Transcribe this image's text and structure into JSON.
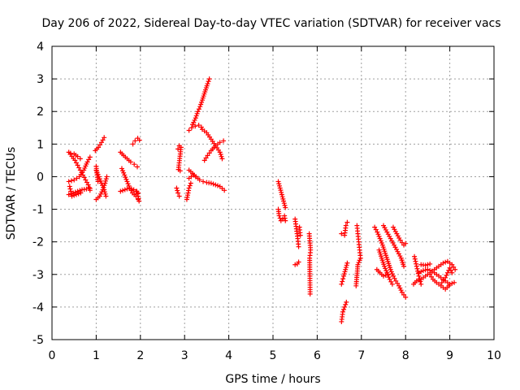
{
  "chart_data": {
    "type": "scatter",
    "title": "Day 206 of 2022, Sidereal Day-to-day VTEC variation (SDTVAR) for receiver vacs",
    "xlabel": "GPS time / hours",
    "ylabel": "SDTVAR / TECUs",
    "xlim": [
      0,
      10
    ],
    "ylim": [
      -5,
      4
    ],
    "xticks": [
      "0",
      "1",
      "2",
      "3",
      "4",
      "5",
      "6",
      "7",
      "8",
      "9",
      "10"
    ],
    "yticks": [
      "-5",
      "-4",
      "-3",
      "-2",
      "-1",
      "0",
      "1",
      "2",
      "3",
      "4"
    ],
    "grid": true,
    "marker": "+",
    "color": "#ff0000",
    "tracks": [
      [
        [
          0.38,
          0.75
        ],
        [
          0.45,
          0.62
        ],
        [
          0.52,
          0.5
        ],
        [
          0.58,
          0.35
        ],
        [
          0.64,
          0.2
        ],
        [
          0.7,
          0.05
        ],
        [
          0.76,
          -0.1
        ],
        [
          0.82,
          -0.25
        ],
        [
          0.86,
          -0.42
        ]
      ],
      [
        [
          0.38,
          -0.55
        ],
        [
          0.48,
          -0.5
        ],
        [
          0.58,
          -0.45
        ],
        [
          0.68,
          -0.4
        ],
        [
          0.78,
          -0.38
        ],
        [
          0.86,
          -0.36
        ]
      ],
      [
        [
          0.38,
          -0.15
        ],
        [
          0.5,
          -0.1
        ],
        [
          0.62,
          0.0
        ],
        [
          0.72,
          0.2
        ],
        [
          0.8,
          0.45
        ],
        [
          0.86,
          0.6
        ]
      ],
      [
        [
          0.42,
          0.72
        ],
        [
          0.5,
          0.7
        ],
        [
          0.58,
          0.62
        ],
        [
          0.64,
          0.55
        ]
      ],
      [
        [
          0.4,
          -0.3
        ],
        [
          0.45,
          -0.6
        ],
        [
          0.55,
          -0.55
        ],
        [
          0.65,
          -0.5
        ]
      ],
      [
        [
          0.98,
          0.8
        ],
        [
          1.05,
          0.9
        ],
        [
          1.12,
          1.05
        ],
        [
          1.18,
          1.2
        ]
      ],
      [
        [
          1.0,
          0.2
        ],
        [
          1.06,
          0.0
        ],
        [
          1.12,
          -0.2
        ],
        [
          1.18,
          -0.4
        ],
        [
          1.22,
          -0.6
        ]
      ],
      [
        [
          1.0,
          -0.7
        ],
        [
          1.08,
          -0.6
        ],
        [
          1.15,
          -0.4
        ],
        [
          1.2,
          -0.2
        ],
        [
          1.24,
          0.0
        ]
      ],
      [
        [
          1.0,
          0.32
        ],
        [
          1.02,
          0.05
        ],
        [
          1.04,
          -0.15
        ]
      ],
      [
        [
          1.55,
          0.75
        ],
        [
          1.62,
          0.65
        ],
        [
          1.7,
          0.55
        ],
        [
          1.78,
          0.45
        ],
        [
          1.86,
          0.38
        ],
        [
          1.93,
          0.3
        ]
      ],
      [
        [
          1.58,
          0.25
        ],
        [
          1.64,
          0.05
        ],
        [
          1.7,
          -0.15
        ],
        [
          1.76,
          -0.35
        ],
        [
          1.82,
          -0.5
        ],
        [
          1.9,
          -0.6
        ]
      ],
      [
        [
          1.55,
          -0.45
        ],
        [
          1.65,
          -0.4
        ],
        [
          1.75,
          -0.35
        ],
        [
          1.85,
          -0.4
        ],
        [
          1.95,
          -0.5
        ]
      ],
      [
        [
          1.83,
          1.0
        ],
        [
          1.88,
          1.1
        ],
        [
          1.94,
          1.18
        ],
        [
          1.98,
          1.12
        ]
      ],
      [
        [
          1.95,
          -0.7
        ],
        [
          1.97,
          -0.75
        ],
        [
          1.92,
          -0.45
        ]
      ],
      [
        [
          2.85,
          0.85
        ],
        [
          2.88,
          0.95
        ],
        [
          2.92,
          0.9
        ],
        [
          2.86,
          0.22
        ],
        [
          2.9,
          0.18
        ]
      ],
      [
        [
          2.82,
          -0.35
        ],
        [
          2.85,
          -0.5
        ],
        [
          2.88,
          -0.6
        ]
      ],
      [
        [
          3.05,
          -0.7
        ],
        [
          3.08,
          -0.5
        ],
        [
          3.1,
          -0.35
        ],
        [
          3.14,
          -0.2
        ]
      ],
      [
        [
          3.1,
          1.42
        ],
        [
          3.16,
          1.5
        ],
        [
          3.24,
          1.55
        ],
        [
          3.32,
          1.58
        ],
        [
          3.38,
          1.52
        ]
      ],
      [
        [
          3.18,
          1.6
        ],
        [
          3.25,
          1.8
        ],
        [
          3.3,
          2.0
        ],
        [
          3.35,
          2.15
        ],
        [
          3.4,
          2.35
        ],
        [
          3.46,
          2.6
        ],
        [
          3.52,
          2.85
        ],
        [
          3.56,
          3.0
        ]
      ],
      [
        [
          3.4,
          1.45
        ],
        [
          3.5,
          1.35
        ],
        [
          3.6,
          1.15
        ],
        [
          3.7,
          0.95
        ],
        [
          3.8,
          0.75
        ],
        [
          3.85,
          0.55
        ]
      ],
      [
        [
          3.45,
          0.5
        ],
        [
          3.52,
          0.65
        ],
        [
          3.6,
          0.8
        ],
        [
          3.7,
          0.95
        ],
        [
          3.8,
          1.05
        ],
        [
          3.88,
          1.1
        ]
      ],
      [
        [
          3.1,
          0.2
        ],
        [
          3.18,
          0.1
        ],
        [
          3.26,
          0.0
        ],
        [
          3.34,
          -0.1
        ],
        [
          3.42,
          -0.15
        ],
        [
          3.5,
          -0.18
        ],
        [
          3.6,
          -0.2
        ],
        [
          3.7,
          -0.25
        ],
        [
          3.8,
          -0.3
        ],
        [
          3.9,
          -0.42
        ]
      ],
      [
        [
          3.1,
          -0.05
        ],
        [
          3.2,
          0.05
        ],
        [
          3.3,
          -0.05
        ]
      ],
      [
        [
          5.12,
          -0.15
        ],
        [
          5.16,
          -0.35
        ],
        [
          5.2,
          -0.55
        ],
        [
          5.24,
          -0.75
        ],
        [
          5.28,
          -0.95
        ]
      ],
      [
        [
          5.12,
          -1.0
        ],
        [
          5.14,
          -1.2
        ],
        [
          5.18,
          -1.35
        ],
        [
          5.22,
          -1.3
        ],
        [
          5.26,
          -1.2
        ],
        [
          5.28,
          -1.35
        ]
      ],
      [
        [
          5.5,
          -1.3
        ],
        [
          5.53,
          -1.6
        ],
        [
          5.56,
          -1.9
        ],
        [
          5.58,
          -2.15
        ]
      ],
      [
        [
          5.5,
          -2.7
        ],
        [
          5.55,
          -2.68
        ],
        [
          5.58,
          -2.62
        ]
      ],
      [
        [
          5.6,
          -1.55
        ],
        [
          5.62,
          -1.8
        ]
      ],
      [
        [
          5.82,
          -1.75
        ],
        [
          5.85,
          -2.25
        ],
        [
          5.83,
          -2.5
        ],
        [
          5.84,
          -3.6
        ]
      ],
      [
        [
          6.55,
          -4.45
        ],
        [
          6.58,
          -4.15
        ],
        [
          6.62,
          -4.0
        ],
        [
          6.66,
          -3.85
        ]
      ],
      [
        [
          6.55,
          -3.3
        ],
        [
          6.6,
          -3.05
        ],
        [
          6.64,
          -2.85
        ],
        [
          6.68,
          -2.65
        ]
      ],
      [
        [
          6.55,
          -1.75
        ],
        [
          6.62,
          -1.8
        ],
        [
          6.65,
          -1.5
        ],
        [
          6.68,
          -1.4
        ]
      ],
      [
        [
          6.9,
          -1.5
        ],
        [
          6.92,
          -1.75
        ],
        [
          6.94,
          -2.0
        ],
        [
          6.96,
          -2.25
        ],
        [
          6.98,
          -2.5
        ],
        [
          6.92,
          -2.7
        ],
        [
          6.88,
          -3.35
        ]
      ],
      [
        [
          7.3,
          -1.55
        ],
        [
          7.36,
          -1.7
        ],
        [
          7.42,
          -1.9
        ],
        [
          7.48,
          -2.1
        ],
        [
          7.54,
          -2.35
        ],
        [
          7.6,
          -2.6
        ],
        [
          7.66,
          -2.85
        ],
        [
          7.72,
          -3.05
        ],
        [
          7.78,
          -3.2
        ],
        [
          7.85,
          -3.35
        ],
        [
          7.92,
          -3.55
        ],
        [
          8.0,
          -3.7
        ]
      ],
      [
        [
          7.4,
          -2.25
        ],
        [
          7.46,
          -2.5
        ],
        [
          7.52,
          -2.75
        ],
        [
          7.58,
          -2.95
        ],
        [
          7.64,
          -3.15
        ],
        [
          7.7,
          -3.3
        ]
      ],
      [
        [
          7.5,
          -1.5
        ],
        [
          7.58,
          -1.7
        ],
        [
          7.66,
          -1.9
        ],
        [
          7.74,
          -2.1
        ],
        [
          7.82,
          -2.3
        ],
        [
          7.9,
          -2.5
        ],
        [
          7.96,
          -2.75
        ]
      ],
      [
        [
          7.72,
          -1.55
        ],
        [
          7.8,
          -1.75
        ],
        [
          7.88,
          -1.95
        ],
        [
          7.96,
          -2.1
        ],
        [
          8.0,
          -2.05
        ]
      ],
      [
        [
          7.35,
          -2.85
        ],
        [
          7.42,
          -2.95
        ],
        [
          7.5,
          -3.05
        ],
        [
          7.6,
          -3.0
        ]
      ],
      [
        [
          8.2,
          -2.45
        ],
        [
          8.25,
          -2.75
        ],
        [
          8.3,
          -3.05
        ],
        [
          8.35,
          -3.3
        ]
      ],
      [
        [
          8.18,
          -3.3
        ],
        [
          8.25,
          -3.2
        ],
        [
          8.35,
          -3.15
        ],
        [
          8.45,
          -3.05
        ],
        [
          8.55,
          -2.95
        ],
        [
          8.65,
          -2.85
        ],
        [
          8.75,
          -2.75
        ],
        [
          8.85,
          -2.65
        ],
        [
          8.95,
          -2.6
        ],
        [
          9.05,
          -2.7
        ],
        [
          9.12,
          -2.85
        ]
      ],
      [
        [
          8.3,
          -2.95
        ],
        [
          8.4,
          -2.88
        ],
        [
          8.5,
          -2.85
        ],
        [
          8.6,
          -2.9
        ],
        [
          8.7,
          -3.0
        ],
        [
          8.8,
          -3.1
        ],
        [
          8.9,
          -3.2
        ],
        [
          9.0,
          -3.3
        ],
        [
          9.1,
          -3.25
        ]
      ],
      [
        [
          8.55,
          -3.0
        ],
        [
          8.62,
          -3.15
        ],
        [
          8.7,
          -3.25
        ],
        [
          8.8,
          -3.35
        ],
        [
          8.9,
          -3.45
        ],
        [
          8.98,
          -3.35
        ]
      ],
      [
        [
          8.35,
          -2.7
        ],
        [
          8.45,
          -2.72
        ],
        [
          8.55,
          -2.68
        ]
      ],
      [
        [
          8.82,
          -3.25
        ],
        [
          8.9,
          -3.1
        ],
        [
          8.95,
          -2.95
        ],
        [
          9.0,
          -2.8
        ],
        [
          9.05,
          -2.95
        ]
      ]
    ]
  }
}
